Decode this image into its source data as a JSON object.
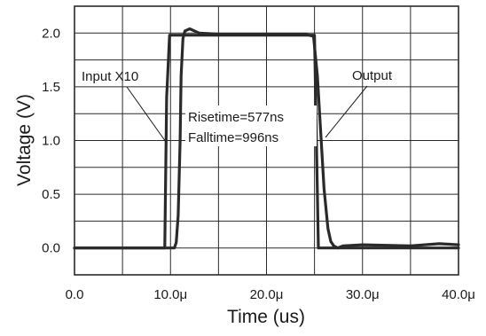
{
  "chart_data": {
    "type": "line",
    "xlabel": "Time (us)",
    "ylabel": "Voltage (V)",
    "xlim": [
      0,
      40
    ],
    "ylim": [
      -0.25,
      2.25
    ],
    "grid": true,
    "x_ticks": [
      0,
      5,
      10,
      15,
      20,
      25,
      30,
      35,
      40
    ],
    "x_tick_labels": [
      "0.0",
      "",
      "10.0μ",
      "",
      "20.0μ",
      "",
      "30.0μ",
      "",
      "40.0μ"
    ],
    "y_ticks": [
      0,
      0.5,
      1.0,
      1.5,
      2.0
    ],
    "y_tick_labels": [
      "0.0",
      "0.5",
      "1.0",
      "1.5",
      "2.0"
    ],
    "series": [
      {
        "name": "Input X10",
        "x": [
          0,
          9.4,
          9.6,
          9.9,
          25.0,
          25.2,
          25.4,
          40
        ],
        "y": [
          0.0,
          0.0,
          1.4,
          1.98,
          1.98,
          1.0,
          0.0,
          0.0
        ]
      },
      {
        "name": "Output",
        "x": [
          0,
          10.4,
          10.6,
          10.8,
          11.0,
          11.1,
          11.3,
          11.5,
          12.0,
          12.5,
          13,
          15,
          20,
          24,
          24.9,
          25.3,
          25.6,
          26.0,
          26.4,
          26.7,
          27.0,
          27.4,
          28,
          30,
          35,
          38,
          40
        ],
        "y": [
          0.0,
          0.0,
          0.05,
          0.3,
          1.0,
          1.6,
          1.95,
          2.02,
          2.04,
          2.02,
          2.0,
          1.99,
          1.99,
          1.99,
          1.97,
          1.6,
          1.15,
          0.55,
          0.18,
          0.06,
          0.02,
          0.0,
          0.02,
          0.03,
          0.02,
          0.04,
          0.03
        ]
      }
    ],
    "annotations": [
      {
        "text": "Input X10",
        "target_series": "Input X10",
        "target_x": 9.5,
        "target_y": 1.0
      },
      {
        "text": "Output",
        "target_series": "Output",
        "target_x": 26.0,
        "target_y": 1.05
      },
      {
        "text": "Risetime=577ns"
      },
      {
        "text": "Falltime=996ns"
      }
    ],
    "colors": {
      "line": "#2a2a2a",
      "grid": "#2a2a2a",
      "background": "#ffffff"
    }
  }
}
